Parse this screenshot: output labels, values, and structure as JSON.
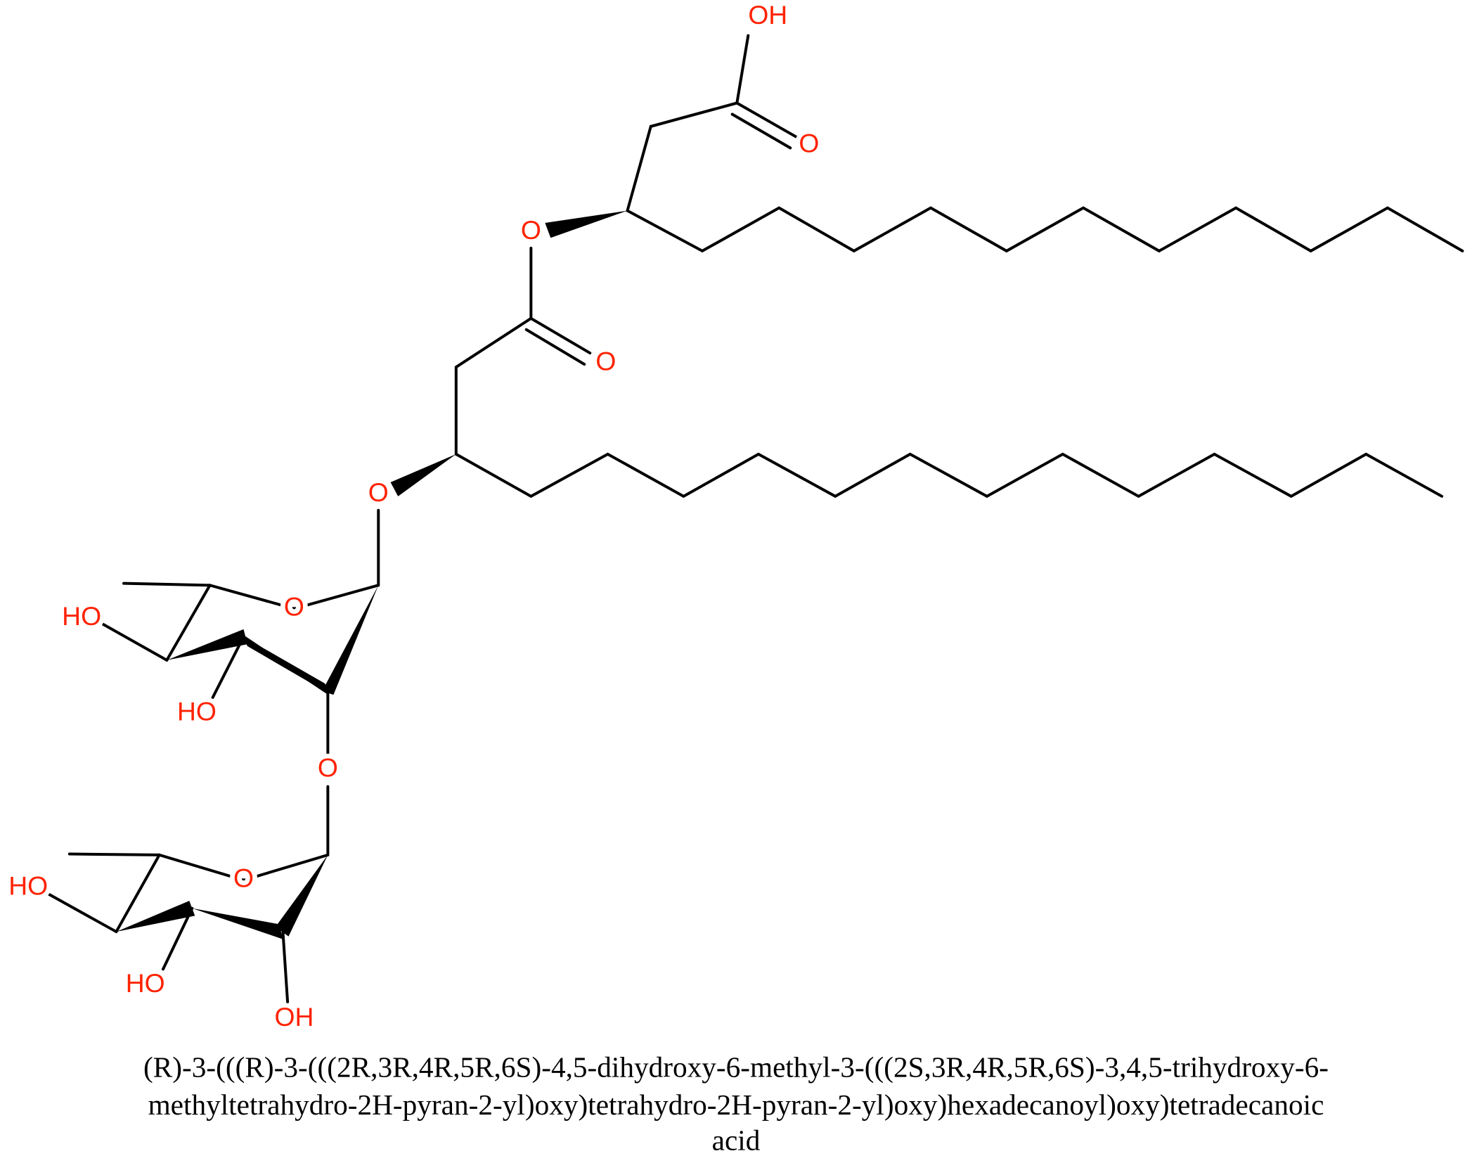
{
  "atoms": [
    "OH",
    "O",
    "O",
    "O",
    "O",
    "O",
    "HO",
    "HO",
    "O",
    "O",
    "HO",
    "HO",
    "OH"
  ],
  "caption": [
    "(R)-3-(((R)-3-(((2R,3R,4R,5R,6S)-4,5-dihydroxy-6-methyl-3-(((2S,3R,4R,5R,6S)-3,4,5-trihydroxy-6-",
    "methyltetrahydro-2H-pyran-2-yl)oxy)tetrahydro-2H-pyran-2-yl)oxy)hexadecanoyl)oxy)tetradecanoic",
    "acid"
  ]
}
